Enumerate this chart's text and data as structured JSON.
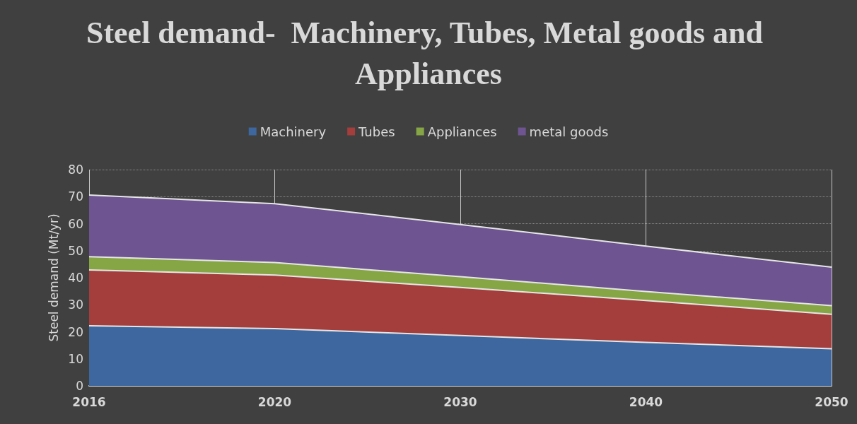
{
  "chart_data": {
    "type": "area",
    "stacked": true,
    "title": "Steel demand-  Machinery, Tubes, Metal goods and Appliances",
    "ylabel": "Steel demand (Mt/yr)",
    "categories": [
      "2016",
      "2020",
      "2030",
      "2040",
      "2050"
    ],
    "series": [
      {
        "name": "Machinery",
        "color": "#3d679e",
        "values": [
          22.2,
          21.2,
          18.6,
          16.1,
          13.7
        ]
      },
      {
        "name": "Tubes",
        "color": "#a33e3c",
        "values": [
          20.7,
          19.8,
          17.8,
          15.5,
          12.8
        ]
      },
      {
        "name": "Appliances",
        "color": "#86a646",
        "values": [
          4.9,
          4.6,
          4.0,
          3.3,
          3.2
        ]
      },
      {
        "name": "metal goods",
        "color": "#6e5490",
        "values": [
          22.8,
          21.8,
          19.3,
          16.8,
          14.2
        ]
      }
    ],
    "ylim": [
      0,
      80
    ],
    "yticks": [
      0,
      10,
      20,
      30,
      40,
      50,
      60,
      70,
      80
    ],
    "grid": true,
    "legend": "top",
    "marker": "none"
  }
}
